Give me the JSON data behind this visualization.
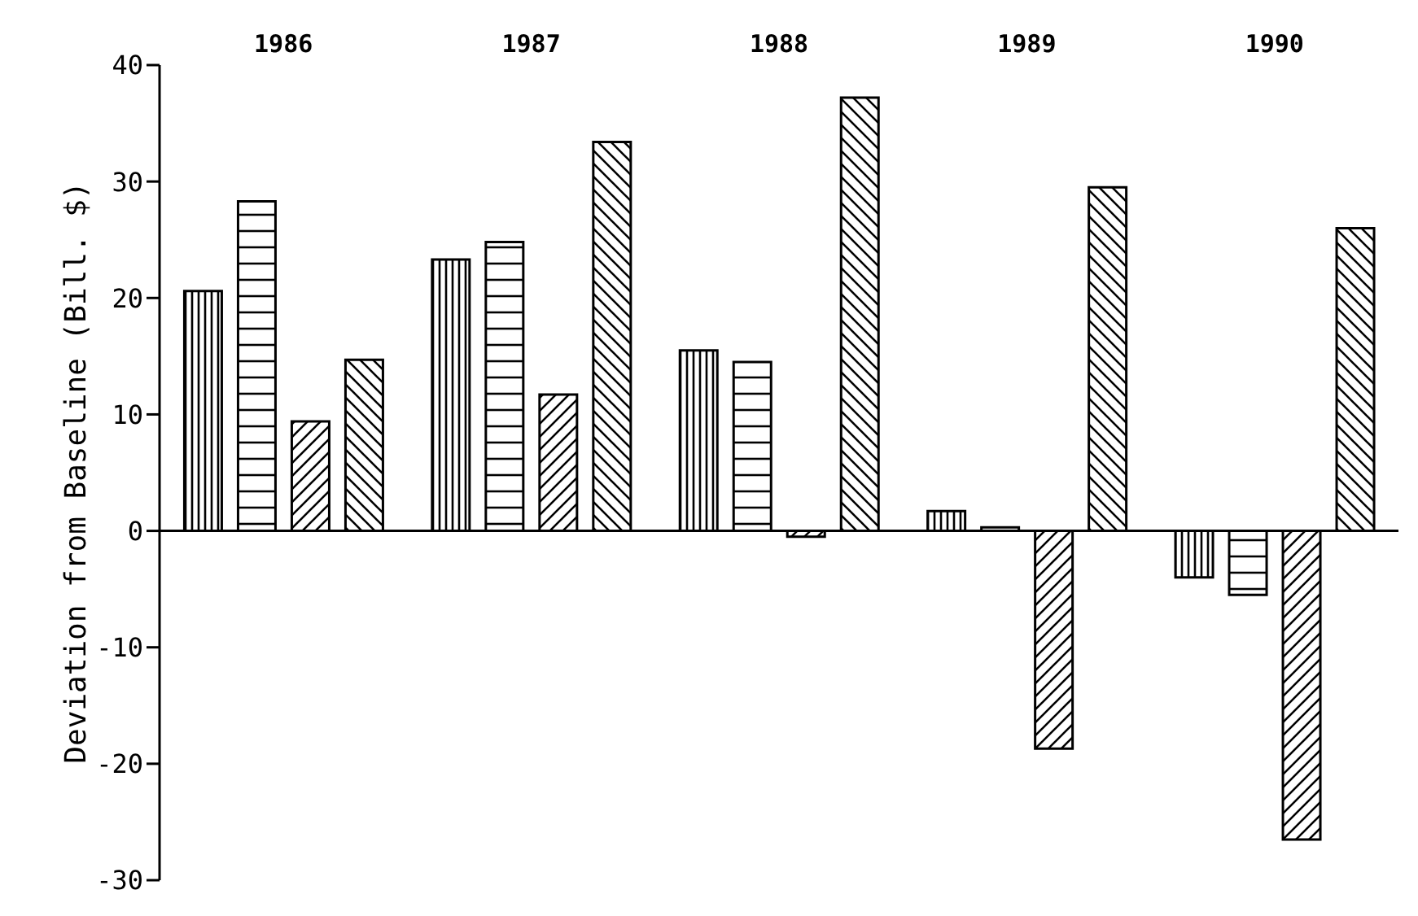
{
  "chart_data": {
    "type": "bar",
    "ylabel": "Deviation from Baseline (Bill. $)",
    "categories": [
      "1986",
      "1987",
      "1988",
      "1989",
      "1990"
    ],
    "series": [
      {
        "color": "#000000",
        "values": [
          20.6,
          23.3,
          15.5,
          1.7,
          -4
        ]
      },
      {
        "color": "#000000",
        "values": [
          28.3,
          24.8,
          14.5,
          0.3,
          -5.5
        ]
      },
      {
        "color": "#000000",
        "values": [
          9.4,
          11.7,
          -0.5,
          -18.7,
          -26.5
        ]
      },
      {
        "color": "#000000",
        "values": [
          14.7,
          33.4,
          37.2,
          29.5,
          26
        ]
      }
    ],
    "ylim": [
      -30,
      40
    ],
    "yticks": [
      -30,
      -20,
      -10,
      0,
      10,
      20,
      30,
      40
    ],
    "grid": false,
    "ref_lines": [
      {
        "axis": "y",
        "value": 0,
        "color": "#000000"
      }
    ]
  }
}
